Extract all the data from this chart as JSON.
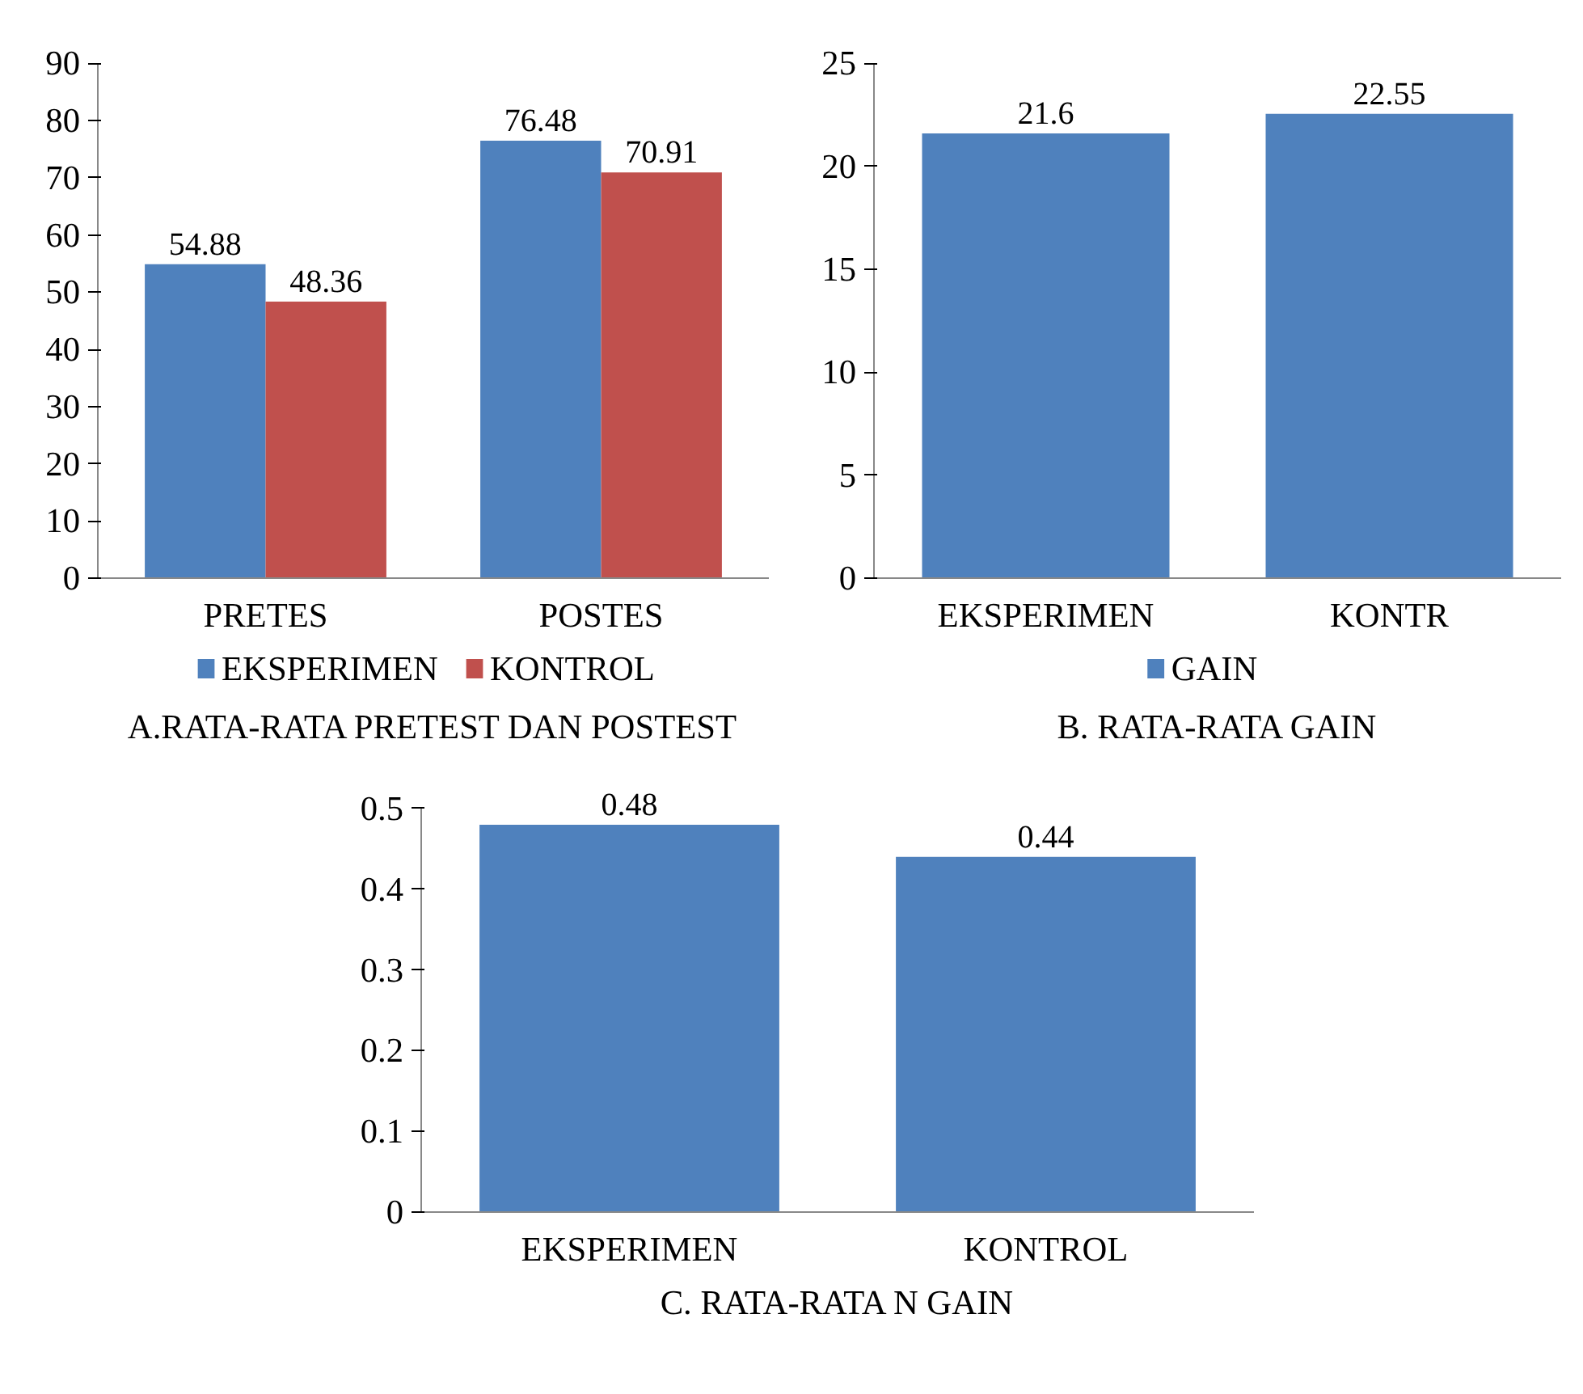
{
  "chart_data": [
    {
      "type": "bar",
      "title": "A.RATA-RATA PRETEST DAN POSTEST",
      "categories": [
        "PRETES",
        "POSTES"
      ],
      "series": [
        {
          "name": "EKSPERIMEN",
          "color": "#4f81bd",
          "values": [
            54.88,
            76.48
          ]
        },
        {
          "name": "KONTROL",
          "color": "#c0504d",
          "values": [
            48.36,
            70.91
          ]
        }
      ],
      "ylim": [
        0,
        90
      ],
      "yticks": [
        0,
        10,
        20,
        30,
        40,
        50,
        60,
        70,
        80,
        90
      ],
      "data_labels": true,
      "legend": "bottom",
      "grid": false
    },
    {
      "type": "bar",
      "title": "B. RATA-RATA GAIN",
      "categories": [
        "EKSPERIMEN",
        "KONTR"
      ],
      "series": [
        {
          "name": "GAIN",
          "color": "#4f81bd",
          "values": [
            21.6,
            22.55
          ]
        }
      ],
      "ylim": [
        0,
        25
      ],
      "yticks": [
        0,
        5,
        10,
        15,
        20,
        25
      ],
      "data_labels": true,
      "legend": "bottom",
      "grid": false
    },
    {
      "type": "bar",
      "title": "C. RATA-RATA N GAIN",
      "categories": [
        "EKSPERIMEN",
        "KONTROL"
      ],
      "series": [
        {
          "color": "#4f81bd",
          "values": [
            0.48,
            0.44
          ]
        }
      ],
      "ylim": [
        0,
        0.5
      ],
      "yticks": [
        0,
        0.1,
        0.2,
        0.3,
        0.4,
        0.5
      ],
      "data_labels": true,
      "grid": false
    }
  ]
}
